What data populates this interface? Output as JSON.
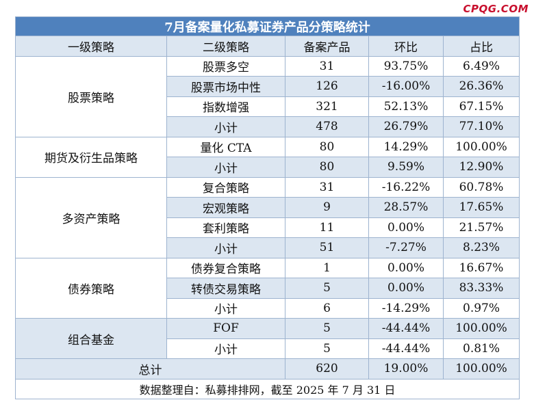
{
  "watermark": "CPQG.COM",
  "title": "7月备案量化私募证券产品分策略统计",
  "headers": [
    "一级策略",
    "二级策略",
    "备案产品",
    "环比",
    "占比"
  ],
  "groups": [
    {
      "name": "股票策略",
      "rows": [
        {
          "sub": "股票多空",
          "count": "31",
          "mom": "93.75%",
          "share": "6.49%"
        },
        {
          "sub": "股票市场中性",
          "count": "126",
          "mom": "-16.00%",
          "share": "26.36%"
        },
        {
          "sub": "指数增强",
          "count": "321",
          "mom": "52.13%",
          "share": "67.15%"
        },
        {
          "sub": "小计",
          "count": "478",
          "mom": "26.79%",
          "share": "77.10%"
        }
      ]
    },
    {
      "name": "期货及衍生品策略",
      "rows": [
        {
          "sub": "量化 CTA",
          "count": "80",
          "mom": "14.29%",
          "share": "100.00%"
        },
        {
          "sub": "小计",
          "count": "80",
          "mom": "9.59%",
          "share": "12.90%"
        }
      ]
    },
    {
      "name": "多资产策略",
      "rows": [
        {
          "sub": "复合策略",
          "count": "31",
          "mom": "-16.22%",
          "share": "60.78%"
        },
        {
          "sub": "宏观策略",
          "count": "9",
          "mom": "28.57%",
          "share": "17.65%"
        },
        {
          "sub": "套利策略",
          "count": "11",
          "mom": "0.00%",
          "share": "21.57%"
        },
        {
          "sub": "小计",
          "count": "51",
          "mom": "-7.27%",
          "share": "8.23%"
        }
      ]
    },
    {
      "name": "债券策略",
      "rows": [
        {
          "sub": "债券复合策略",
          "count": "1",
          "mom": "0.00%",
          "share": "16.67%"
        },
        {
          "sub": "转债交易策略",
          "count": "5",
          "mom": "0.00%",
          "share": "83.33%"
        },
        {
          "sub": "小计",
          "count": "6",
          "mom": "-14.29%",
          "share": "0.97%"
        }
      ]
    },
    {
      "name": "组合基金",
      "rows": [
        {
          "sub": "FOF",
          "count": "5",
          "mom": "-44.44%",
          "share": "100.00%"
        },
        {
          "sub": "小计",
          "count": "5",
          "mom": "-44.44%",
          "share": "0.81%"
        }
      ]
    }
  ],
  "total": {
    "label": "总计",
    "count": "620",
    "mom": "19.00%",
    "share": "100.00%"
  },
  "footer": "数据整理自：私募排排网，截至 2025 年 7 月 31 日"
}
